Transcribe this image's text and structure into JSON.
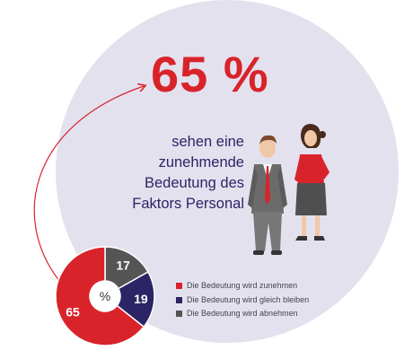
{
  "headline": "65 %",
  "subtext_lines": [
    "sehen eine",
    "zunehmende",
    "Bedeutung des",
    "Faktors Personal"
  ],
  "colors": {
    "red": "#d9232a",
    "navy": "#2b2565",
    "gray": "#555555",
    "circle": "#e4e1ef"
  },
  "chart_data": {
    "type": "pie",
    "center_label": "%",
    "slices": [
      {
        "label": "Die Bedeutung wird zunehmen",
        "value": 65,
        "color": "#d9232a"
      },
      {
        "label": "Die Bedeutung wird gleich bleiben",
        "value": 19,
        "color": "#2b2565"
      },
      {
        "label": "Die Bedeutung wird abnehmen",
        "value": 17,
        "color": "#555555"
      }
    ],
    "legend_position": "right"
  }
}
